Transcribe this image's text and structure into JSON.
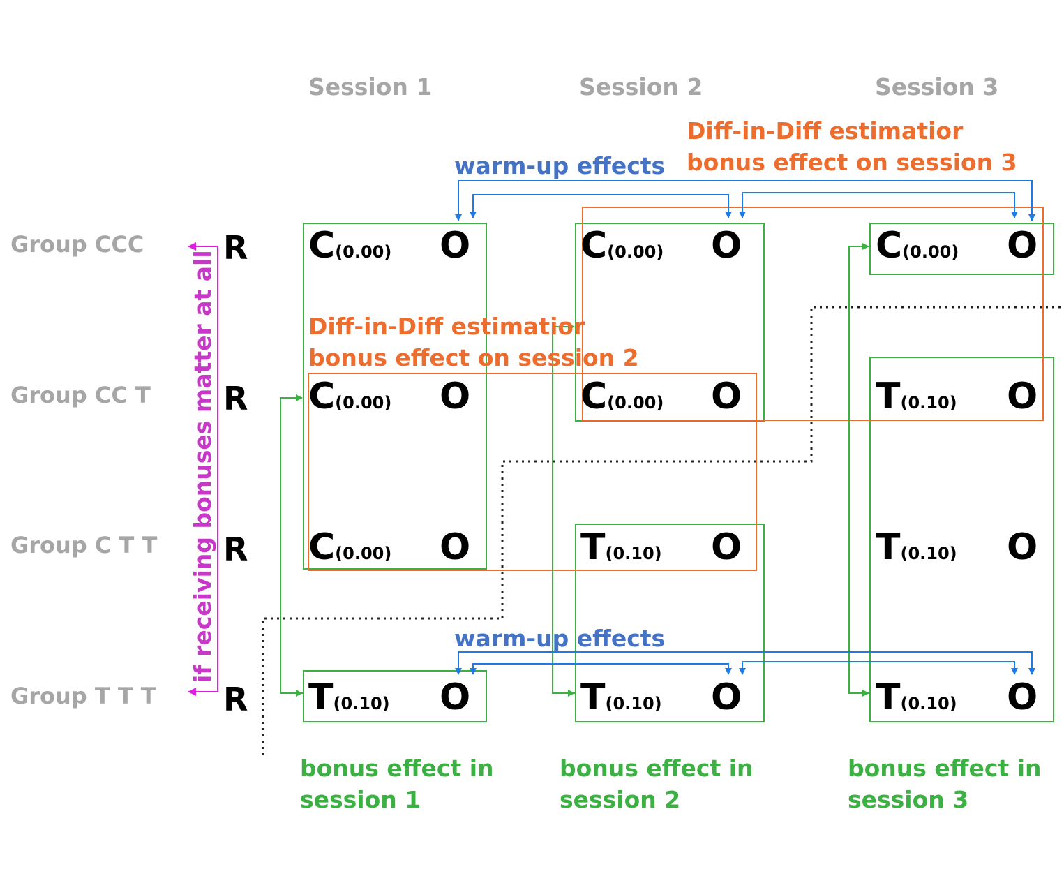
{
  "sessions": [
    "Session 1",
    "Session 2",
    "Session 3"
  ],
  "groups": [
    "Group CCC",
    "Group CC T",
    "Group C T  T",
    "Group T  T  T"
  ],
  "randomization_label": "R",
  "outcome_label": "O",
  "rows": [
    [
      {
        "t": "C",
        "v": "(0.00)"
      },
      {
        "t": "C",
        "v": "(0.00)"
      },
      {
        "t": "C",
        "v": "(0.00)"
      }
    ],
    [
      {
        "t": "C",
        "v": "(0.00)"
      },
      {
        "t": "C",
        "v": "(0.00)"
      },
      {
        "t": "T",
        "v": "(0.10)"
      }
    ],
    [
      {
        "t": "C",
        "v": "(0.00)"
      },
      {
        "t": "T",
        "v": "(0.10)"
      },
      {
        "t": "T",
        "v": "(0.10)"
      }
    ],
    [
      {
        "t": "T",
        "v": "(0.10)"
      },
      {
        "t": "T",
        "v": "(0.10)"
      },
      {
        "t": "T",
        "v": "(0.10)"
      }
    ]
  ],
  "annotations": {
    "warmup_top": "warm-up effects",
    "warmup_bottom": "warm-up effects",
    "did3_line1": "Diff-in-Diff estimatior",
    "did3_line2": "bonus effect on session 3",
    "did2_line1": "Diff-in-Diff estimatior",
    "did2_line2": "bonus effect on session 2",
    "bonus1_line1": "bonus effect in",
    "bonus1_line2": "session 1",
    "bonus2_line1": "bonus effect in",
    "bonus2_line2": "session 2",
    "bonus3_line1": "bonus effect in",
    "bonus3_line2": "session 3",
    "vertical": "if receiving bonuses matter at all"
  },
  "colors": {
    "green": "#3cb043",
    "orange": "#ed6d2f",
    "blue": "#1e7be6",
    "blue_text": "#4472c4",
    "magenta": "#e020e0",
    "gray": "#a6a6a6"
  }
}
